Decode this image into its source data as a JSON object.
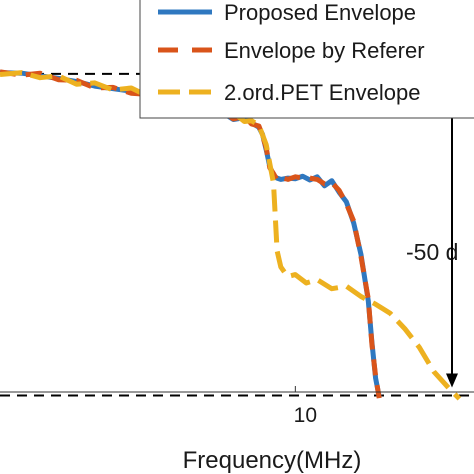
{
  "chart_data": {
    "type": "line",
    "title": "",
    "xlabel": "Frequency(MHz)",
    "ylabel": "",
    "x_ticks": [
      {
        "value": 10,
        "label": "10"
      }
    ],
    "xlim": [
      1.9,
      14.9
    ],
    "ylim": [
      -58,
      2
    ],
    "grid": false,
    "legend": {
      "placement": "top-right",
      "entries": [
        "Proposed Envelope",
        "Envelope by Referer",
        "2.ord.PET Envelope"
      ]
    },
    "reference_lines": [
      {
        "y": 0,
        "style": "dashed",
        "color": "#000000"
      },
      {
        "y": -50,
        "style": "dashed",
        "color": "#000000"
      }
    ],
    "annotation": {
      "label": "-50 d",
      "from": 0,
      "to": -50,
      "at_x": 14.2
    },
    "series": [
      {
        "name": "Proposed Envelope",
        "color": "#2f78c0",
        "dash": "solid",
        "x": [
          1.9,
          2.5,
          3.0,
          3.5,
          4.0,
          4.5,
          5.0,
          5.5,
          6.0,
          6.5,
          7.0,
          7.5,
          8.0,
          8.3,
          8.6,
          8.8,
          9.0,
          9.1,
          9.2,
          9.3,
          9.4,
          9.5,
          9.6,
          9.8,
          10.0,
          10.2,
          10.4,
          10.6,
          10.8,
          11.0,
          11.2,
          11.4,
          11.6,
          11.8,
          12.0,
          12.1,
          12.2,
          12.3
        ],
        "y": [
          0.2,
          0.1,
          -0.3,
          -0.7,
          -1.2,
          -1.9,
          -2.3,
          -2.7,
          -3.4,
          -3.9,
          -4.6,
          -5.3,
          -6.0,
          -7.1,
          -6.8,
          -7.6,
          -8.3,
          -9.4,
          -11.8,
          -14.4,
          -15.8,
          -16.2,
          -16.4,
          -16.2,
          -16.3,
          -15.9,
          -16.5,
          -16.0,
          -17.4,
          -16.6,
          -18.4,
          -19.9,
          -23.2,
          -28.1,
          -35.3,
          -41.7,
          -47.3,
          -50.2
        ]
      },
      {
        "name": "Envelope by Referer",
        "color": "#d9541a",
        "dash": "dashed",
        "x": [
          1.9,
          2.5,
          3.0,
          3.5,
          4.0,
          4.5,
          5.0,
          5.5,
          6.0,
          6.5,
          7.0,
          7.5,
          8.0,
          8.3,
          8.6,
          8.8,
          9.0,
          9.1,
          9.2,
          9.3,
          9.4,
          9.5,
          9.6,
          9.8,
          10.0,
          10.2,
          10.4,
          10.6,
          10.8,
          11.0,
          11.2,
          11.4,
          11.6,
          11.8,
          12.0,
          12.1,
          12.2,
          12.3
        ],
        "y": [
          0.3,
          -0.2,
          0.1,
          -0.9,
          -1.0,
          -2.2,
          -2.1,
          -3.0,
          -3.2,
          -4.2,
          -4.4,
          -5.6,
          -5.8,
          -7.0,
          -6.6,
          -7.8,
          -8.1,
          -9.6,
          -11.5,
          -14.6,
          -15.5,
          -16.5,
          -16.1,
          -16.4,
          -16.0,
          -16.2,
          -16.2,
          -16.4,
          -17.1,
          -16.9,
          -18.1,
          -20.2,
          -22.9,
          -28.4,
          -35.0,
          -42.0,
          -47.0,
          -50.4
        ]
      },
      {
        "name": "2.ord.PET Envelope",
        "color": "#edb120",
        "dash": "dashed",
        "x": [
          1.9,
          2.5,
          3.0,
          3.5,
          4.0,
          4.5,
          5.0,
          5.5,
          6.0,
          6.5,
          7.0,
          7.5,
          8.0,
          8.3,
          8.6,
          8.8,
          9.0,
          9.2,
          9.4,
          9.5,
          9.6,
          9.7,
          9.8,
          10.0,
          10.3,
          10.6,
          11.0,
          11.4,
          11.8,
          12.2,
          12.6,
          13.0,
          13.4,
          13.8,
          14.2,
          14.5
        ],
        "y": [
          -0.1,
          0.2,
          -0.6,
          -0.3,
          -1.6,
          -1.4,
          -2.5,
          -2.2,
          -3.6,
          -3.5,
          -4.9,
          -4.7,
          -6.3,
          -6.0,
          -7.4,
          -7.3,
          -8.0,
          -11.0,
          -17.0,
          -27.5,
          -30.0,
          -30.8,
          -31.5,
          -31.2,
          -32.5,
          -32.0,
          -33.4,
          -33.0,
          -34.6,
          -35.8,
          -37.2,
          -39.6,
          -42.5,
          -46.3,
          -48.8,
          -50.5
        ]
      }
    ]
  }
}
